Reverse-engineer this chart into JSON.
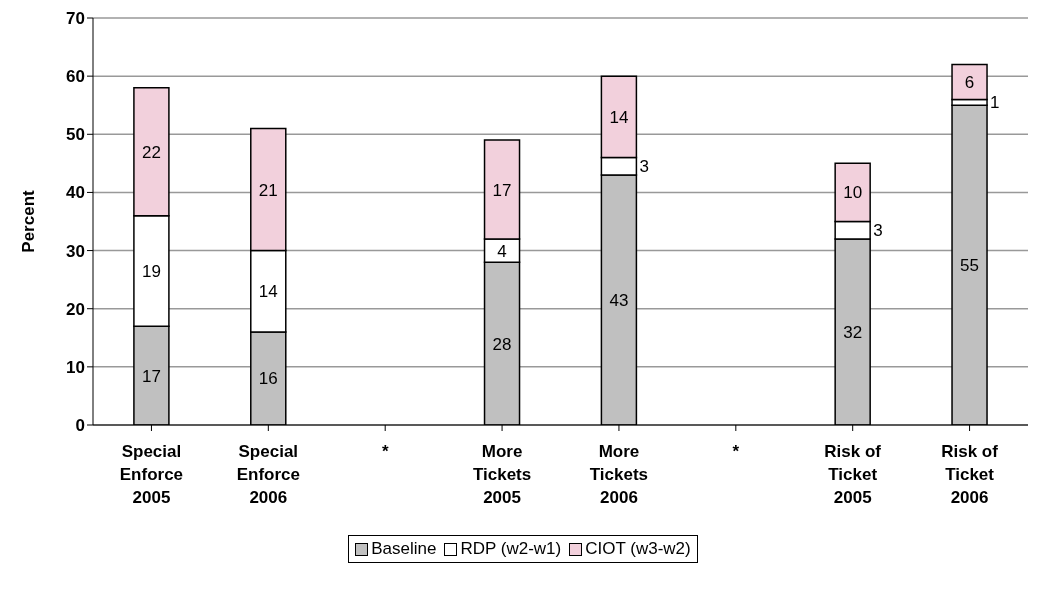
{
  "chart_data": {
    "type": "bar",
    "stacked": true,
    "ylabel": "Percent",
    "categories": [
      "Special\nEnforce\n2005",
      "Special\nEnforce\n2006",
      "*",
      "More\nTickets\n2005",
      "More\nTickets\n2006",
      "*",
      "Risk of\nTicket\n2005",
      "Risk of\nTicket\n2006"
    ],
    "series": [
      {
        "name": "Baseline",
        "color": "#c0c0c0",
        "values": [
          17,
          16,
          null,
          28,
          43,
          null,
          32,
          55
        ]
      },
      {
        "name": "RDP (w2-w1)",
        "color": "#ffffff",
        "values": [
          19,
          14,
          null,
          4,
          3,
          null,
          3,
          1
        ]
      },
      {
        "name": "CIOT (w3-w2)",
        "color": "#f2d0dc",
        "values": [
          22,
          21,
          null,
          17,
          14,
          null,
          10,
          6
        ]
      }
    ],
    "ylim": [
      0,
      70
    ],
    "yticks": [
      0,
      10,
      20,
      30,
      40,
      50,
      60,
      70
    ],
    "grid": "y",
    "legend": "bottom",
    "data_labels": true
  }
}
